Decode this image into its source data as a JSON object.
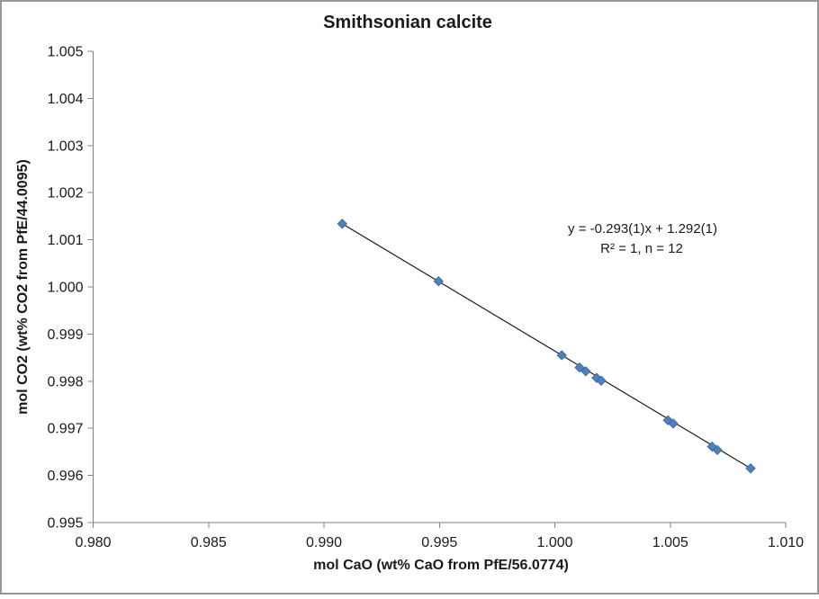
{
  "chart_data": {
    "type": "scatter",
    "title": "Smithsonian calcite",
    "xlabel": "mol CaO (wt% CaO from PfE/56.0774)",
    "ylabel": "mol CO2 (wt% CO2 from PfE/44.0095)",
    "xlim": [
      0.98,
      1.01
    ],
    "ylim": [
      0.995,
      1.005
    ],
    "x_tick_step": 0.005,
    "y_tick_step": 0.001,
    "tick_decimals": 3,
    "grid": false,
    "legend": "none",
    "marker_shape": "diamond",
    "points": [
      {
        "x": 0.99079,
        "y": 1.00134
      },
      {
        "x": 0.99496,
        "y": 1.00012
      },
      {
        "x": 1.0003,
        "y": 0.99855
      },
      {
        "x": 1.00107,
        "y": 0.99829
      },
      {
        "x": 1.00134,
        "y": 0.99821
      },
      {
        "x": 1.00181,
        "y": 0.99807
      },
      {
        "x": 1.00201,
        "y": 0.99801
      },
      {
        "x": 1.0049,
        "y": 0.99717
      },
      {
        "x": 1.00513,
        "y": 0.9971
      },
      {
        "x": 1.00681,
        "y": 0.99661
      },
      {
        "x": 1.00704,
        "y": 0.99654
      },
      {
        "x": 1.00848,
        "y": 0.99615
      }
    ],
    "trendline": {
      "type": "linear",
      "slope": -0.293,
      "intercept": 1.292
    },
    "annotation": {
      "line1": "y = -0.293(1)x + 1.292(1)",
      "line2": "R² = 1, n = 12"
    },
    "colors": {
      "marker_fill": "#4F81BD",
      "marker_stroke": "#3E6C9F",
      "trendline": "#1a1a1a",
      "axis_line": "#808080",
      "text": "#1a1a1a",
      "chart_border": "#979797",
      "background": "#ffffff"
    }
  }
}
